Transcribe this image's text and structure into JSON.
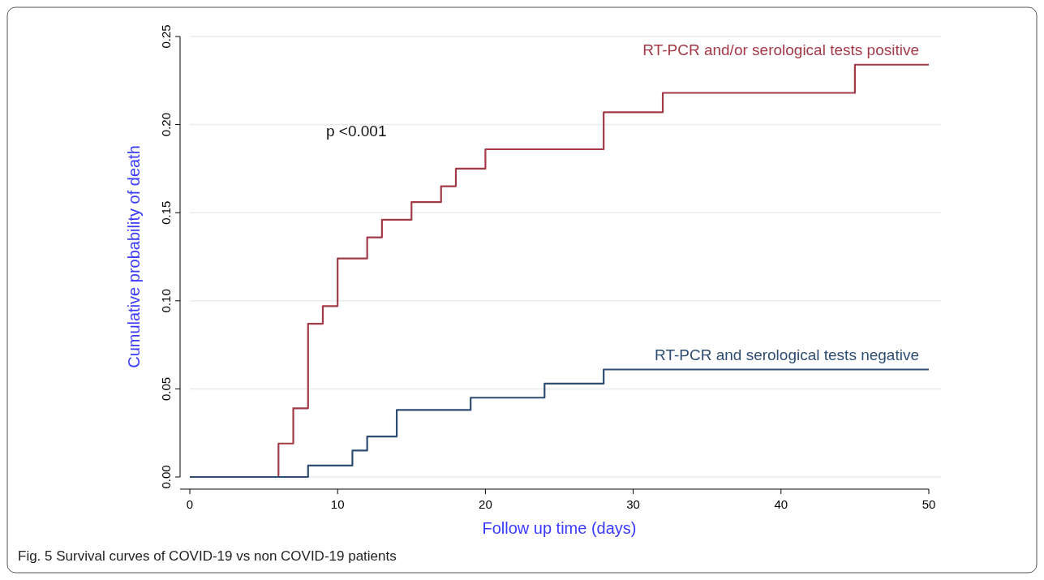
{
  "chart_data": {
    "type": "step",
    "xlabel": "Follow up time (days)",
    "ylabel": "Cumulative probability of death",
    "xlim": [
      0,
      50
    ],
    "xticks": [
      0,
      10,
      20,
      30,
      40,
      50
    ],
    "ylim": [
      0,
      0.25
    ],
    "yticks": [
      {
        "value": 0,
        "label": "0.00"
      },
      {
        "value": 0.05,
        "label": "0.05"
      },
      {
        "value": 0.1,
        "label": "0.10"
      },
      {
        "value": 0.15,
        "label": "0.15"
      },
      {
        "value": 0.2,
        "label": "0.20"
      },
      {
        "value": 0.25,
        "label": "0.25"
      }
    ],
    "grid": "y",
    "legend": false,
    "line_style": "solid",
    "marker": "none",
    "series": [
      {
        "name": "RT-PCR and/or serological tests positive",
        "color": "#a33a48",
        "x": [
          0,
          6,
          7,
          8,
          9,
          10,
          12,
          13,
          15,
          17,
          18,
          20,
          28,
          32,
          45,
          50
        ],
        "values": [
          0,
          0.019,
          0.039,
          0.087,
          0.097,
          0.124,
          0.136,
          0.146,
          0.156,
          0.165,
          0.175,
          0.186,
          0.207,
          0.218,
          0.234,
          0.234
        ]
      },
      {
        "name": "RT-PCR and serological tests negative",
        "color": "#2e4d72",
        "x": [
          0,
          8,
          11,
          12,
          14,
          19,
          24,
          28,
          50
        ],
        "values": [
          0,
          0.0065,
          0.015,
          0.023,
          0.038,
          0.045,
          0.053,
          0.061,
          0.061
        ]
      }
    ],
    "annotations": [
      "p <0.001",
      "Fig. 5  Survival curves of COVID-19 vs non COVID-19 patients"
    ]
  }
}
